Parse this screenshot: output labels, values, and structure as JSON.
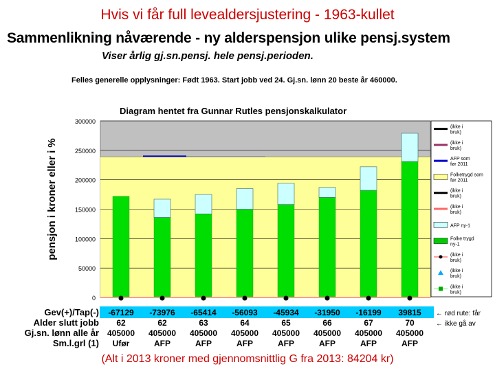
{
  "slide_title": "Hvis vi får full levealdersjustering - 1963-kullet",
  "heading": "Sammenlikning nåværende - ny alderspensjon ulike pensj.system",
  "subheading": "Viser årlig gj.sn.pensj. hele pensj.perioden.",
  "general_info": "Felles generelle opplysninger: Født 1963. Start jobb ved 24. Gj.sn. lønn 20 beste år 460000.",
  "footnote": "(Alt i 2013 kroner med gjennomsnittlig G fra 2013: 84204 kr)",
  "colors": {
    "plot_grey": "#c0c0c0",
    "plot_yellow": "#ffff99",
    "base_green": "#00dd00",
    "top_cyan": "#ccffff",
    "afp_blue": "#0000cc",
    "red_line": "#ff9999",
    "strip_cyan": "#00ccff"
  },
  "chart_data": {
    "type": "bar",
    "title": "Diagram hentet fra Gunnar Rutles pensjonskalkulator",
    "ylabel": "pensjon i kroner eller i %",
    "ylim": [
      0,
      300000
    ],
    "yticks": [
      0,
      50000,
      100000,
      150000,
      200000,
      250000,
      300000
    ],
    "ytick_labels": [
      "0",
      "50000",
      "100000",
      "150000",
      "200000",
      "250000",
      "300000"
    ],
    "background_bands": [
      {
        "name": "Folketrygd som før 2011",
        "from": 0,
        "to": 239000,
        "color": "#ffff99"
      }
    ],
    "afp_line": {
      "value": 240000,
      "name": "AFP som før 2011"
    },
    "n_bars": 8,
    "series": [
      {
        "name": "Folke trygd ny-1",
        "values": [
          172000,
          136000,
          142000,
          150000,
          158000,
          170000,
          182000,
          231000
        ]
      },
      {
        "name": "AFP ny-1",
        "values": [
          0,
          31000,
          33000,
          35000,
          36000,
          17000,
          40000,
          48000
        ]
      }
    ],
    "legend": [
      {
        "label": "(ikke i bruk)",
        "swatch": "line",
        "color": "#000000"
      },
      {
        "label": "(ikke i bruk)",
        "swatch": "line",
        "color": "#993366"
      },
      {
        "label": "AFP som før 2011",
        "swatch": "line",
        "color": "#0000cc"
      },
      {
        "label": "Folketrygd som før 2011",
        "swatch": "box",
        "color": "#ffff99"
      },
      {
        "label": "(ikke i bruk)",
        "swatch": "line",
        "color": "#000000"
      },
      {
        "label": "(ikke i bruk)",
        "swatch": "line",
        "color": "#ff6666"
      },
      {
        "label": "AFP ny-1",
        "swatch": "box",
        "color": "#ccffff"
      },
      {
        "label": "Folke trygd ny-1",
        "swatch": "box",
        "color": "#00cc00"
      },
      {
        "label": "(ikke i bruk)",
        "swatch": "dotline",
        "color": "#ff9999"
      },
      {
        "label": "(ikke i bruk)",
        "swatch": "triangle",
        "color": "#00aaff"
      },
      {
        "label": "(ikke i bruk)",
        "swatch": "square",
        "color": "#00aa00"
      }
    ],
    "table": {
      "row_labels": [
        "Gev(+)/Tap(-)",
        "Alder slutt jobb",
        "Gj.sn. lønn alle år",
        "Sm.l.grl (1)"
      ],
      "gev_tap": [
        "-67129",
        "-73976",
        "-65414",
        "-56093",
        "-45934",
        "-31950",
        "-16199",
        "39815"
      ],
      "alder": [
        "62",
        "62",
        "63",
        "64",
        "65",
        "66",
        "67",
        "70"
      ],
      "lonn": [
        "405000",
        "405000",
        "405000",
        "405000",
        "405000",
        "405000",
        "405000",
        "405000"
      ],
      "smlgrl": [
        "Ufør",
        "AFP",
        "AFP",
        "AFP",
        "AFP",
        "AFP",
        "AFP",
        "AFP"
      ],
      "notes": [
        "← rød rute: får",
        "← ikke gå av"
      ]
    }
  }
}
